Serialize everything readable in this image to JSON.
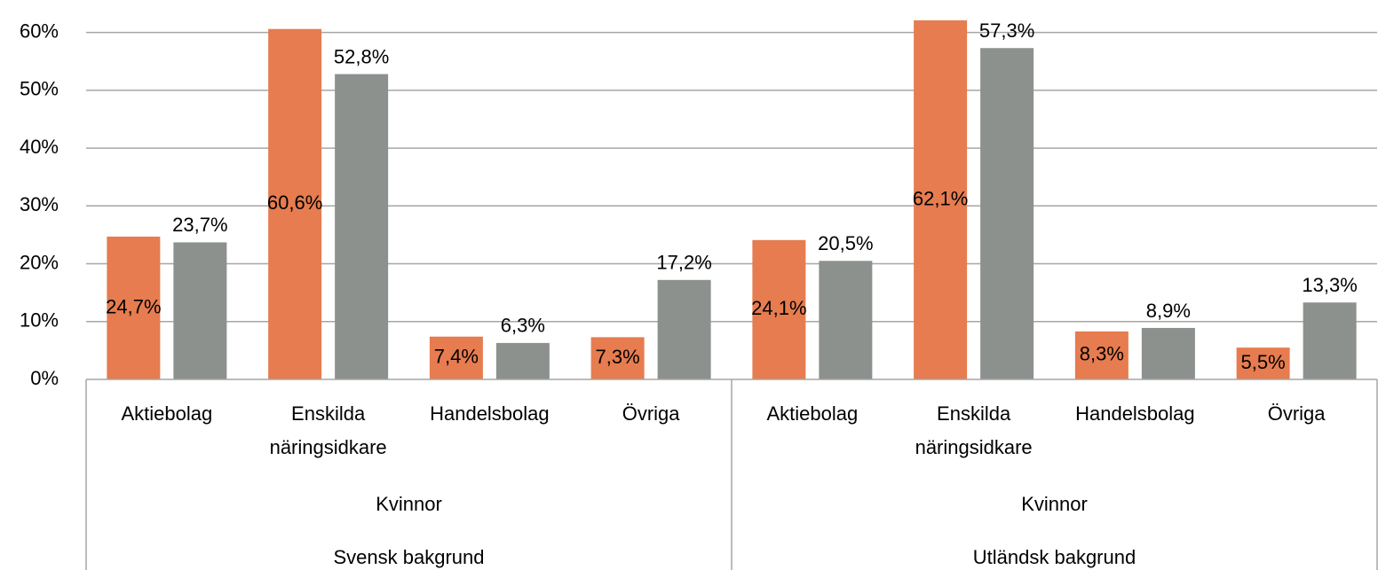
{
  "chart_data": {
    "type": "bar",
    "categories": [
      "Aktiebolag",
      "Enskilda näringsidkare",
      "Handelsbolag",
      "Övriga",
      "Aktiebolag",
      "Enskilda näringsidkare",
      "Handelsbolag",
      "Övriga"
    ],
    "group_levels": [
      [
        "Kvinnor",
        "Kvinnor"
      ],
      [
        "Svensk bakgrund",
        "Utländsk bakgrund"
      ]
    ],
    "series": [
      {
        "color": "#e67c4f",
        "label_position": "center",
        "values": [
          24.7,
          60.6,
          7.4,
          7.3,
          24.1,
          62.1,
          8.3,
          5.5
        ],
        "value_labels": [
          "24,7%",
          "60,6%",
          "7,4%",
          "7,3%",
          "24,1%",
          "62,1%",
          "8,3%",
          "5,5%"
        ]
      },
      {
        "color": "#8c918e",
        "label_position": "outside_end",
        "values": [
          23.7,
          52.8,
          6.3,
          17.2,
          20.5,
          57.3,
          8.9,
          13.3
        ],
        "value_labels": [
          "23,7%",
          "52,8%",
          "6,3%",
          "17,2%",
          "20,5%",
          "57,3%",
          "8,9%",
          "13,3%"
        ]
      }
    ],
    "ylim": [
      0,
      65
    ],
    "yticks": [
      {
        "value": 0,
        "label": "0%"
      },
      {
        "value": 10,
        "label": "10%"
      },
      {
        "value": 20,
        "label": "20%"
      },
      {
        "value": 30,
        "label": "30%"
      },
      {
        "value": 40,
        "label": "40%"
      },
      {
        "value": 50,
        "label": "50%"
      },
      {
        "value": 60,
        "label": "60%"
      }
    ],
    "grid": true
  }
}
